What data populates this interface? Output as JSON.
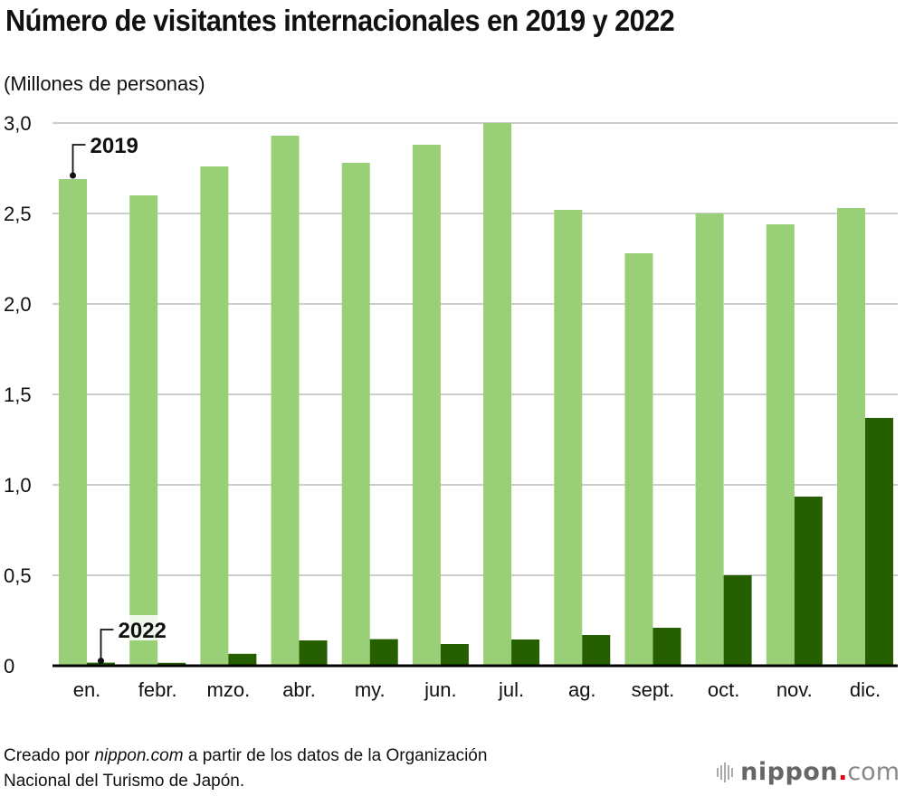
{
  "chart_data": {
    "type": "bar",
    "title": "Número de visitantes internacionales en 2019 y 2022",
    "ylabel": "(Millones de personas)",
    "xlabel": "",
    "categories": [
      "en.",
      "febr.",
      "mzo.",
      "abr.",
      "my.",
      "jun.",
      "jul.",
      "ag.",
      "sept.",
      "oct.",
      "nov.",
      "dic."
    ],
    "series": [
      {
        "name": "2019",
        "color": "#98cf77",
        "values": [
          2.69,
          2.6,
          2.76,
          2.93,
          2.78,
          2.88,
          3.0,
          2.52,
          2.28,
          2.5,
          2.44,
          2.53
        ]
      },
      {
        "name": "2022",
        "color": "#265f00",
        "values": [
          0.017,
          0.016,
          0.066,
          0.14,
          0.147,
          0.12,
          0.145,
          0.17,
          0.21,
          0.5,
          0.935,
          1.37
        ]
      }
    ],
    "ylim": [
      0,
      3.0
    ],
    "yticks": [
      0,
      0.5,
      1.0,
      1.5,
      2.0,
      2.5,
      3.0
    ],
    "ytick_labels": [
      "0",
      "0,5",
      "1,0",
      "1,5",
      "2,0",
      "2,5",
      "3,0"
    ],
    "grid": true,
    "legend": "annotations on first group",
    "annotations": [
      {
        "text": "2019",
        "series": "2019",
        "category": "en."
      },
      {
        "text": "2022",
        "series": "2022",
        "category": "en."
      }
    ]
  },
  "footer": {
    "prefix": "Creado por ",
    "source_italic": "nippon.com",
    "suffix": " a partir de los datos de la Organización",
    "line2": "Nacional del Turismo de Japón."
  },
  "logo": {
    "name": "nippon",
    "dot": ".",
    "tld": "com"
  }
}
